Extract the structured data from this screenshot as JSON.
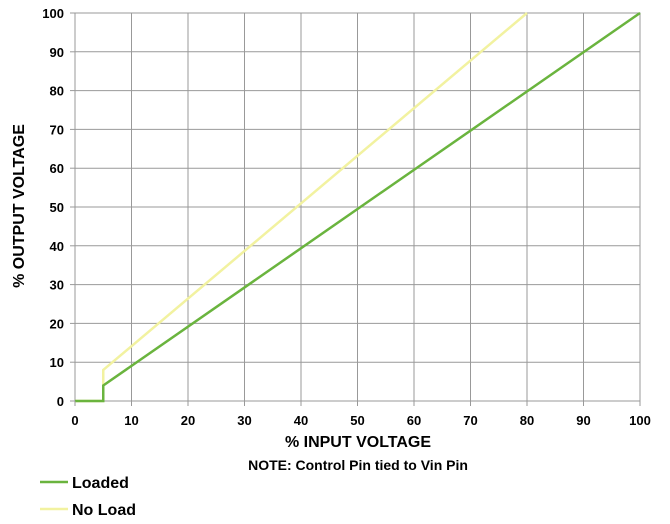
{
  "chart_data": {
    "type": "line",
    "xlabel": "% INPUT VOLTAGE",
    "ylabel": "% OUTPUT VOLTAGE",
    "note": "NOTE: Control Pin tied to Vin Pin",
    "xlim": [
      0,
      100
    ],
    "ylim": [
      0,
      100
    ],
    "x_ticks": [
      "0",
      "10",
      "20",
      "30",
      "40",
      "50",
      "60",
      "70",
      "80",
      "90",
      "100"
    ],
    "y_ticks": [
      "0",
      "10",
      "20",
      "30",
      "40",
      "50",
      "60",
      "70",
      "80",
      "90",
      "100"
    ],
    "grid": true,
    "legend_placement": "bottom-left",
    "series": [
      {
        "name": "Loaded",
        "color": "#6ab43e",
        "points": [
          [
            0,
            0
          ],
          [
            5,
            0
          ],
          [
            5,
            4
          ],
          [
            100,
            100
          ]
        ]
      },
      {
        "name": "No Load",
        "color": "#f2f2a0",
        "points": [
          [
            0,
            0
          ],
          [
            5,
            0
          ],
          [
            5,
            8
          ],
          [
            80,
            100
          ]
        ]
      }
    ]
  }
}
